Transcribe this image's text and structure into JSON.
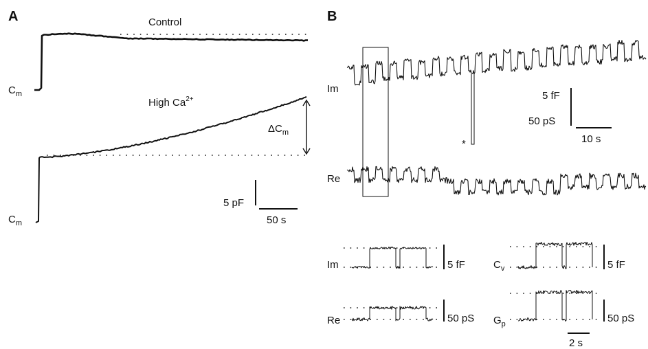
{
  "panels": {
    "a": "A",
    "b": "B"
  },
  "panel_a": {
    "control_label": "Control",
    "high_ca_label": "High Ca",
    "high_ca_sup": "2+",
    "cm_label": "C",
    "cm_sub": "m",
    "delta_cm_label": "ΔC",
    "delta_cm_sub": "m",
    "scale_y": "5 pF",
    "scale_x": "50 s"
  },
  "panel_b": {
    "im_label": "Im",
    "re_label": "Re",
    "asterisk": "*",
    "scale_y1": "5 fF",
    "scale_y2": "50 pS",
    "scale_x": "10 s",
    "insets": {
      "im_label": "Im",
      "re_label": "Re",
      "cv_label": "C",
      "cv_sub": "v",
      "gp_label": "G",
      "gp_sub": "p",
      "scale_ff_1": "5 fF",
      "scale_ps_1": "50 pS",
      "scale_ff_2": "5 fF",
      "scale_ps_2": "50 pS",
      "scale_time": "2 s"
    }
  }
}
